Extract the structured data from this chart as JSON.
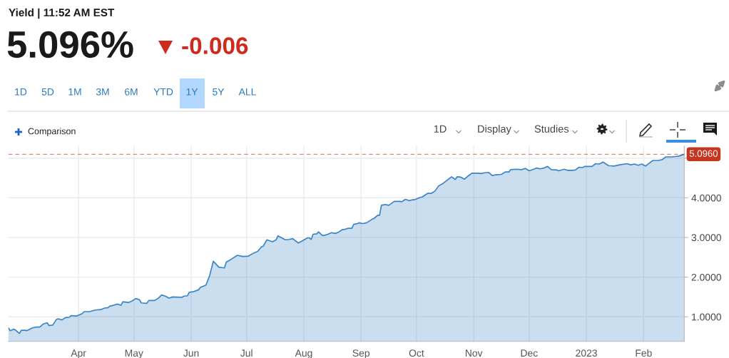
{
  "chart_data": {
    "type": "area",
    "title": "Yield | 11:52 AM EST",
    "subtitle": "5.096%",
    "x": [
      "2022-02-22",
      "2022-02-23",
      "2022-02-25",
      "2022-02-26",
      "2022-02-28",
      "2022-03-01",
      "2022-03-03",
      "2022-03-04",
      "2022-03-07",
      "2022-03-09",
      "2022-03-11",
      "2022-03-13",
      "2022-03-15",
      "2022-03-16",
      "2022-03-18",
      "2022-03-20",
      "2022-03-21",
      "2022-03-23",
      "2022-03-25",
      "2022-03-27",
      "2022-03-28",
      "2022-03-31",
      "2022-04-03",
      "2022-04-04",
      "2022-04-07",
      "2022-04-10",
      "2022-04-13",
      "2022-04-15",
      "2022-04-17",
      "2022-04-18",
      "2022-04-20",
      "2022-04-22",
      "2022-04-24",
      "2022-04-25",
      "2022-04-28",
      "2022-04-30",
      "2022-05-02",
      "2022-05-04",
      "2022-05-05",
      "2022-05-08",
      "2022-05-09",
      "2022-05-12",
      "2022-05-14",
      "2022-05-16",
      "2022-05-18",
      "2022-05-20",
      "2022-05-22",
      "2022-05-27",
      "2022-05-28",
      "2022-05-30",
      "2022-05-31",
      "2022-06-02",
      "2022-06-05",
      "2022-06-06",
      "2022-06-09",
      "2022-06-11",
      "2022-06-13",
      "2022-06-16",
      "2022-06-19",
      "2022-06-20",
      "2022-06-22",
      "2022-06-26",
      "2022-06-29",
      "2022-07-02",
      "2022-07-05",
      "2022-07-07",
      "2022-07-09",
      "2022-07-10",
      "2022-07-12",
      "2022-07-15",
      "2022-07-17",
      "2022-07-18",
      "2022-07-20",
      "2022-07-22",
      "2022-07-24",
      "2022-07-26",
      "2022-07-29",
      "2022-07-31",
      "2022-08-03",
      "2022-08-04",
      "2022-08-05",
      "2022-08-06",
      "2022-08-08",
      "2022-08-09",
      "2022-08-11",
      "2022-08-12",
      "2022-08-14",
      "2022-08-16",
      "2022-08-18",
      "2022-08-20",
      "2022-08-22",
      "2022-08-23",
      "2022-08-25",
      "2022-08-27",
      "2022-08-28",
      "2022-08-30",
      "2022-08-31",
      "2022-09-02",
      "2022-09-04",
      "2022-09-07",
      "2022-09-08",
      "2022-09-10",
      "2022-09-11",
      "2022-09-12",
      "2022-09-14",
      "2022-09-16",
      "2022-09-19",
      "2022-09-22",
      "2022-09-23",
      "2022-09-25",
      "2022-09-27",
      "2022-09-29",
      "2022-09-30",
      "2022-10-03",
      "2022-10-04",
      "2022-10-07",
      "2022-10-09",
      "2022-10-11",
      "2022-10-13",
      "2022-10-15",
      "2022-10-17",
      "2022-10-20",
      "2022-10-22",
      "2022-10-23",
      "2022-10-25",
      "2022-10-27",
      "2022-10-29",
      "2022-10-31",
      "2022-11-03",
      "2022-11-05",
      "2022-11-07",
      "2022-11-09",
      "2022-11-11",
      "2022-11-13",
      "2022-11-16",
      "2022-11-18",
      "2022-11-20",
      "2022-11-21",
      "2022-11-24",
      "2022-11-27",
      "2022-11-29",
      "2022-12-01",
      "2022-12-04",
      "2022-12-05",
      "2022-12-07",
      "2022-12-09",
      "2022-12-11",
      "2022-12-13",
      "2022-12-16",
      "2022-12-17",
      "2022-12-20",
      "2022-12-22",
      "2022-12-24",
      "2022-12-26",
      "2022-12-28",
      "2022-12-30",
      "2022-12-31",
      "2023-01-04",
      "2023-01-06",
      "2023-01-08",
      "2023-01-10",
      "2023-01-13",
      "2023-01-16",
      "2023-01-19",
      "2023-01-23",
      "2023-01-25",
      "2023-01-27",
      "2023-01-29",
      "2023-01-31",
      "2023-02-02",
      "2023-02-04",
      "2023-02-06",
      "2023-02-09",
      "2023-02-11",
      "2023-02-13",
      "2023-02-16",
      "2023-02-18",
      "2023-02-20",
      "2023-02-23"
    ],
    "series": [
      {
        "color": "#3a84c6",
        "values": [
          0.72,
          0.65,
          0.69,
          0.66,
          0.58,
          0.66,
          0.66,
          0.65,
          0.72,
          0.74,
          0.74,
          0.82,
          0.85,
          0.78,
          0.79,
          0.93,
          0.95,
          0.92,
          0.98,
          0.99,
          1.03,
          1.02,
          1.08,
          1.13,
          1.13,
          1.17,
          1.18,
          1.22,
          1.23,
          1.27,
          1.29,
          1.32,
          1.29,
          1.38,
          1.36,
          1.4,
          1.46,
          1.43,
          1.35,
          1.34,
          1.41,
          1.41,
          1.46,
          1.55,
          1.52,
          1.47,
          1.5,
          1.49,
          1.52,
          1.53,
          1.62,
          1.63,
          1.68,
          1.74,
          1.8,
          2.04,
          2.4,
          2.25,
          2.23,
          2.38,
          2.43,
          2.55,
          2.52,
          2.53,
          2.61,
          2.65,
          2.76,
          2.78,
          2.94,
          2.89,
          2.94,
          3.04,
          2.99,
          2.94,
          2.95,
          2.97,
          2.86,
          2.91,
          2.99,
          2.99,
          2.95,
          3.08,
          3.09,
          3.14,
          3.05,
          3.05,
          3.08,
          3.12,
          3.1,
          3.14,
          3.2,
          3.2,
          3.23,
          3.23,
          3.33,
          3.35,
          3.37,
          3.35,
          3.37,
          3.46,
          3.48,
          3.56,
          3.56,
          3.81,
          3.83,
          3.81,
          3.91,
          3.91,
          3.9,
          3.96,
          3.93,
          3.95,
          3.95,
          4.01,
          4.02,
          4.11,
          4.11,
          4.17,
          4.3,
          4.35,
          4.42,
          4.53,
          4.46,
          4.53,
          4.52,
          4.47,
          4.55,
          4.62,
          4.62,
          4.61,
          4.63,
          4.64,
          4.56,
          4.58,
          4.59,
          4.65,
          4.65,
          4.71,
          4.72,
          4.71,
          4.74,
          4.68,
          4.73,
          4.75,
          4.73,
          4.75,
          4.79,
          4.71,
          4.7,
          4.68,
          4.72,
          4.69,
          4.69,
          4.7,
          4.77,
          4.76,
          4.79,
          4.79,
          4.86,
          4.85,
          4.9,
          4.81,
          4.8,
          4.83,
          4.86,
          4.83,
          4.85,
          4.82,
          4.85,
          4.8,
          4.87,
          4.94,
          4.94,
          4.96,
          5.03,
          5.03,
          5.04,
          5.05,
          5.096
        ]
      }
    ],
    "xlim": [
      "2022-02-22",
      "2023-02-23"
    ],
    "xticks": [
      {
        "value": "2022-04-01",
        "label": "Apr"
      },
      {
        "value": "2022-05-01",
        "label": "May"
      },
      {
        "value": "2022-06-01",
        "label": "Jun"
      },
      {
        "value": "2022-07-01",
        "label": "Jul"
      },
      {
        "value": "2022-08-01",
        "label": "Aug"
      },
      {
        "value": "2022-09-01",
        "label": "Sep"
      },
      {
        "value": "2022-10-01",
        "label": "Oct"
      },
      {
        "value": "2022-11-01",
        "label": "Nov"
      },
      {
        "value": "2022-12-01",
        "label": "Dec"
      },
      {
        "value": "2023-01-01",
        "label": "2023"
      },
      {
        "value": "2023-02-01",
        "label": "Feb"
      }
    ],
    "ylim": [
      0.38,
      5.3
    ],
    "yticks": [
      {
        "value": 1,
        "label": "1.0000"
      },
      {
        "value": 2,
        "label": "2.0000"
      },
      {
        "value": 3,
        "label": "3.0000"
      },
      {
        "value": 4,
        "label": "4.0000"
      },
      {
        "value": 5,
        "label": null
      }
    ],
    "ref_lines": [
      {
        "axis": "y",
        "value": 5.096,
        "label": "5.0960",
        "color": "#c4361f",
        "line_style": "dashed"
      }
    ],
    "annotations": [
      "-0.006",
      "1D",
      "5D",
      "1M",
      "3M",
      "6M",
      "YTD",
      "1Y",
      "5Y",
      "ALL",
      "Comparison",
      "1D",
      "Display",
      "Studies"
    ],
    "grid": true
  }
}
